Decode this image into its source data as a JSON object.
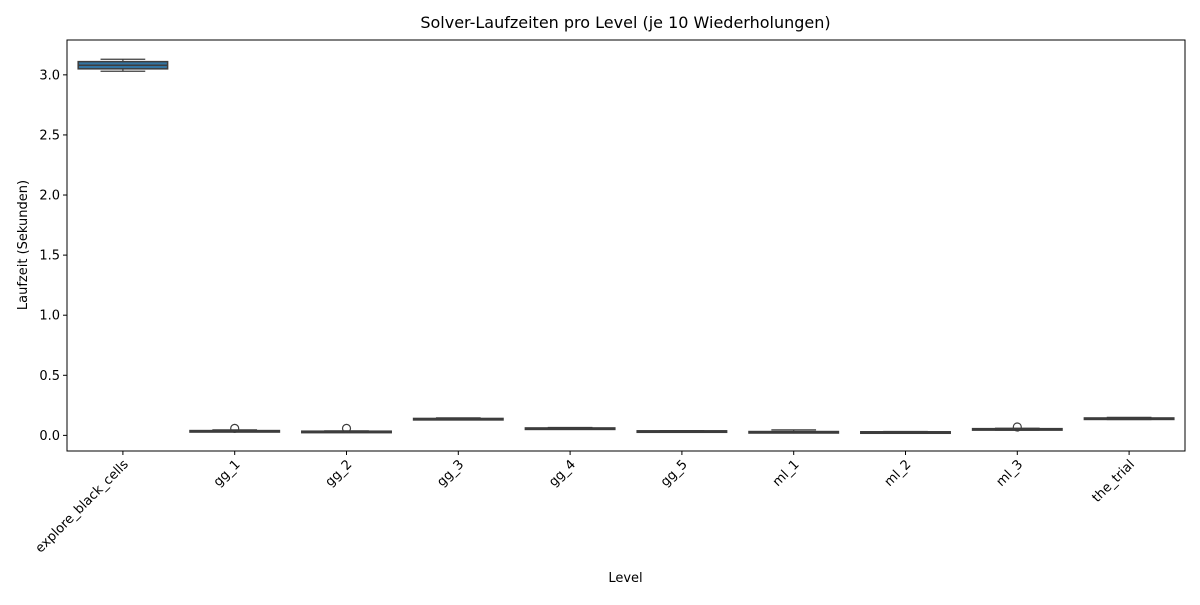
{
  "chart_data": {
    "type": "box",
    "title": "Solver-Laufzeiten pro Level (je 10 Wiederholungen)",
    "xlabel": "Level",
    "ylabel": "Laufzeit (Sekunden)",
    "ylim": [
      -0.13,
      3.29
    ],
    "yticks": [
      0.0,
      0.5,
      1.0,
      1.5,
      2.0,
      2.5,
      3.0
    ],
    "ytick_labels": [
      "0.0",
      "0.5",
      "1.0",
      "1.5",
      "2.0",
      "2.5",
      "3.0"
    ],
    "grid": false,
    "legend": null,
    "colors": {
      "box_fill": "#3274a1",
      "box_edge": "#3d3d3d",
      "axis": "#000000"
    },
    "categories": [
      "explore_black_cells",
      "gg_1",
      "gg_2",
      "gg_3",
      "gg_4",
      "gg_5",
      "ml_1",
      "ml_2",
      "ml_3",
      "the_trial"
    ],
    "boxes": [
      {
        "label": "explore_black_cells",
        "whislo": 3.03,
        "q1": 3.05,
        "med": 3.08,
        "q3": 3.11,
        "whishi": 3.13,
        "fliers": []
      },
      {
        "label": "gg_1",
        "whislo": 0.03,
        "q1": 0.033,
        "med": 0.036,
        "q3": 0.04,
        "whishi": 0.046,
        "fliers": [
          0.058
        ]
      },
      {
        "label": "gg_2",
        "whislo": 0.028,
        "q1": 0.03,
        "med": 0.032,
        "q3": 0.035,
        "whishi": 0.038,
        "fliers": [
          0.058
        ]
      },
      {
        "label": "gg_3",
        "whislo": 0.132,
        "q1": 0.135,
        "med": 0.138,
        "q3": 0.141,
        "whishi": 0.146,
        "fliers": []
      },
      {
        "label": "gg_4",
        "whislo": 0.052,
        "q1": 0.055,
        "med": 0.058,
        "q3": 0.062,
        "whishi": 0.066,
        "fliers": []
      },
      {
        "label": "gg_5",
        "whislo": 0.028,
        "q1": 0.032,
        "med": 0.035,
        "q3": 0.038,
        "whishi": 0.04,
        "fliers": []
      },
      {
        "label": "ml_1",
        "whislo": 0.022,
        "q1": 0.026,
        "med": 0.029,
        "q3": 0.032,
        "whishi": 0.046,
        "fliers": []
      },
      {
        "label": "ml_2",
        "whislo": 0.024,
        "q1": 0.026,
        "med": 0.028,
        "q3": 0.03,
        "whishi": 0.032,
        "fliers": []
      },
      {
        "label": "ml_3",
        "whislo": 0.044,
        "q1": 0.048,
        "med": 0.052,
        "q3": 0.056,
        "whishi": 0.06,
        "fliers": [
          0.07
        ]
      },
      {
        "label": "the_trial",
        "whislo": 0.132,
        "q1": 0.137,
        "med": 0.141,
        "q3": 0.145,
        "whishi": 0.15,
        "fliers": []
      }
    ]
  }
}
